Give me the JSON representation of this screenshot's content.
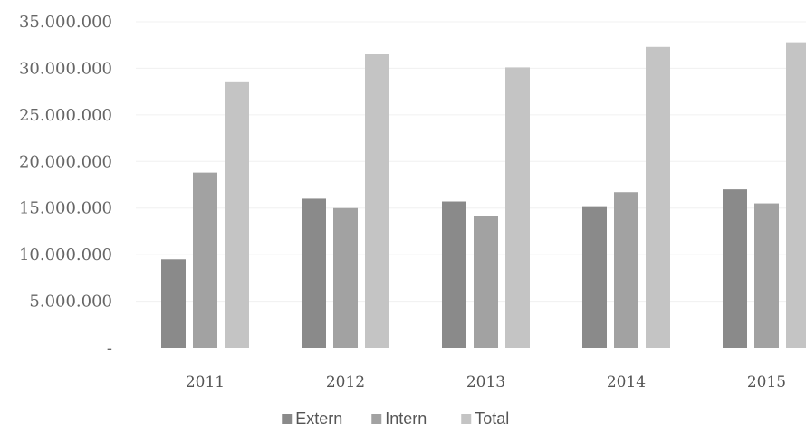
{
  "chart_data": {
    "type": "bar",
    "title": "",
    "xlabel": "",
    "ylabel": "",
    "categories": [
      "2011",
      "2012",
      "2013",
      "2014",
      "2015"
    ],
    "series": [
      {
        "name": "Extern",
        "color": "#8a8a8a",
        "values": [
          9500000,
          16000000,
          15700000,
          15200000,
          17000000
        ]
      },
      {
        "name": "Intern",
        "color": "#a2a2a2",
        "values": [
          18800000,
          15000000,
          14100000,
          16700000,
          15500000
        ]
      },
      {
        "name": "Total",
        "color": "#c4c4c4",
        "values": [
          28600000,
          31500000,
          30100000,
          32300000,
          32800000
        ]
      }
    ],
    "ylim": [
      0,
      35000000
    ],
    "yticks": [
      0,
      5000000,
      10000000,
      15000000,
      20000000,
      25000000,
      30000000,
      35000000
    ],
    "ytick_labels": [
      "-",
      "5.000.000",
      "10.000.000",
      "15.000.000",
      "20.000.000",
      "25.000.000",
      "30.000.000",
      "35.000.000"
    ],
    "grid": true,
    "legend_position": "bottom"
  }
}
